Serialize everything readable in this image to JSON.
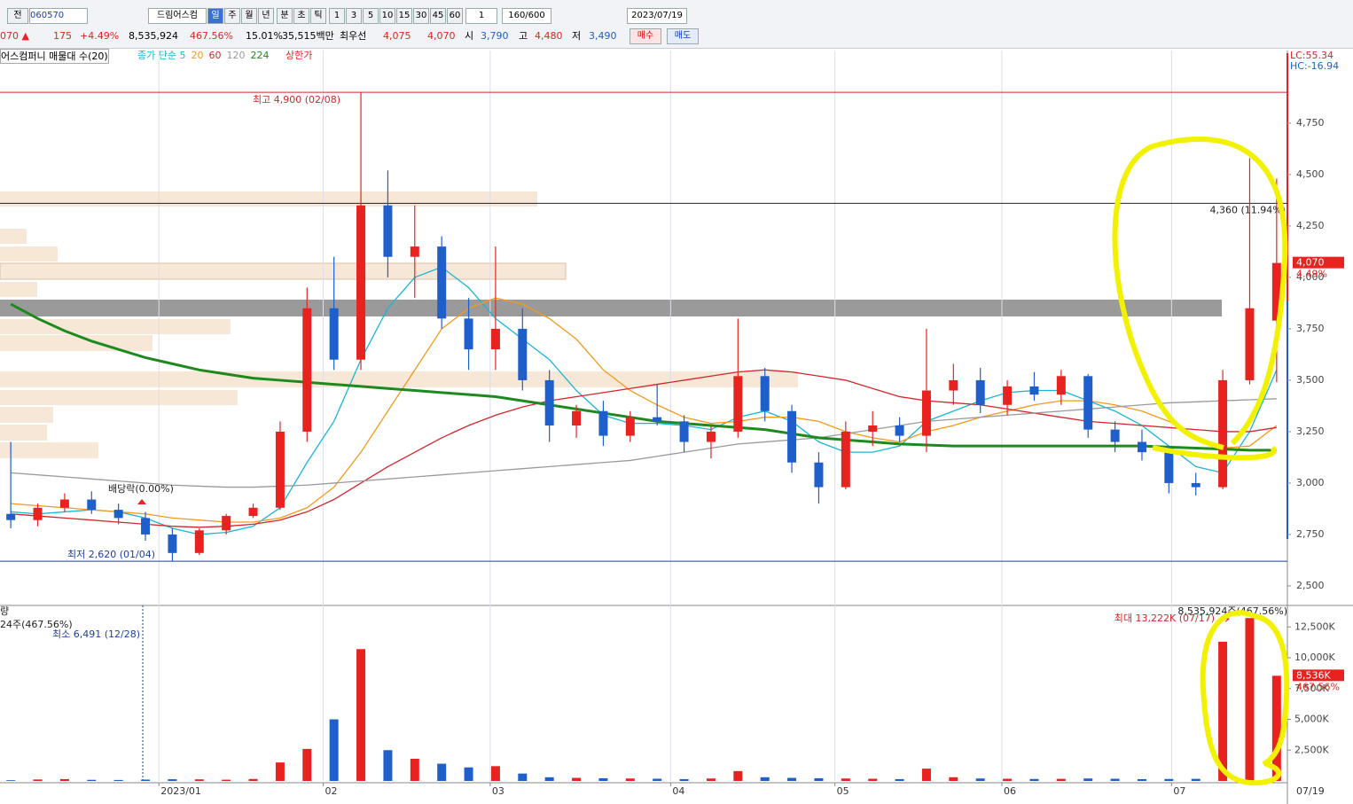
{
  "toolbar": {
    "row1": [
      "전",
      "060570",
      "드림어스컴",
      "일",
      "주",
      "월",
      "년",
      "분",
      "초",
      "틱",
      "1",
      "3",
      "5",
      "10",
      "15",
      "30",
      "45",
      "60",
      "1",
      "160/600",
      "2023/07/19"
    ],
    "row2": [
      "070 ▲",
      "175",
      "+4.49%",
      "8,535,924",
      "467.56%",
      "15.01%",
      "35,515백만",
      "최우선",
      "4,075",
      "4,070",
      "시",
      "3,790",
      "고",
      "4,480",
      "저",
      "3,490",
      "매수",
      "매도"
    ],
    "legend": [
      "어스컴퍼니 매물대 수(20)",
      "상한가"
    ]
  },
  "chart_data": {
    "type": "candlestick",
    "open": [
      2850,
      2820,
      2880,
      2920,
      2870,
      2830,
      2750,
      2660,
      2770,
      2840,
      2880,
      3250,
      3850,
      3600,
      4350,
      4100,
      4150,
      3800,
      3650,
      3750,
      3500,
      3280,
      3350,
      3230,
      3320,
      3300,
      3200,
      3250,
      3520,
      3350,
      3100,
      2980,
      3250,
      3280,
      3230,
      3450,
      3500,
      3380,
      3470,
      3430,
      3520,
      3260,
      3200,
      3150,
      3000,
      2980,
      3500,
      3790
    ],
    "high": [
      3200,
      2900,
      2950,
      2960,
      2900,
      2860,
      2780,
      2780,
      2850,
      2900,
      3300,
      3950,
      4100,
      4900,
      4520,
      4350,
      4200,
      3900,
      4150,
      3850,
      3550,
      3380,
      3400,
      3350,
      3480,
      3330,
      3280,
      3800,
      3560,
      3380,
      3150,
      3300,
      3350,
      3320,
      3750,
      3580,
      3560,
      3500,
      3540,
      3550,
      3530,
      3300,
      3260,
      3180,
      3050,
      3550,
      4580,
      4480
    ],
    "low": [
      2780,
      2790,
      2860,
      2850,
      2800,
      2720,
      2620,
      2650,
      2750,
      2830,
      2870,
      3200,
      3550,
      3550,
      4000,
      3900,
      3750,
      3550,
      3550,
      3450,
      3200,
      3220,
      3180,
      3200,
      3280,
      3150,
      3120,
      3220,
      3300,
      3050,
      2900,
      2970,
      3180,
      3200,
      3150,
      3380,
      3340,
      3330,
      3400,
      3380,
      3220,
      3150,
      3110,
      2950,
      2940,
      2970,
      3480,
      3490
    ],
    "close": [
      2820,
      2880,
      2920,
      2870,
      2830,
      2750,
      2660,
      2770,
      2840,
      2880,
      3250,
      3850,
      3600,
      4350,
      4100,
      4150,
      3800,
      3650,
      3750,
      3500,
      3280,
      3350,
      3230,
      3320,
      3300,
      3200,
      3250,
      3520,
      3350,
      3100,
      2980,
      3250,
      3280,
      3230,
      3450,
      3500,
      3380,
      3470,
      3430,
      3520,
      3260,
      3200,
      3150,
      3000,
      2980,
      3500,
      3850,
      4070
    ],
    "volume": [
      60,
      120,
      150,
      90,
      80,
      110,
      140,
      130,
      100,
      160,
      1500,
      2600,
      5000,
      10700,
      2500,
      1800,
      1400,
      1100,
      1200,
      600,
      300,
      250,
      220,
      200,
      180,
      150,
      200,
      800,
      300,
      250,
      220,
      200,
      180,
      150,
      1000,
      300,
      200,
      180,
      160,
      170,
      200,
      180,
      150,
      160,
      170,
      11300,
      13222,
      8536
    ],
    "ma": [
      {
        "name": "종가 단순 5",
        "color": "#19b5d6",
        "values": [
          2860,
          2850,
          2860,
          2870,
          2860,
          2830,
          2780,
          2750,
          2760,
          2790,
          2880,
          3100,
          3300,
          3600,
          3850,
          4000,
          4050,
          3950,
          3800,
          3700,
          3600,
          3450,
          3330,
          3290,
          3290,
          3280,
          3260,
          3320,
          3350,
          3300,
          3200,
          3150,
          3150,
          3180,
          3300,
          3350,
          3400,
          3440,
          3450,
          3450,
          3400,
          3350,
          3280,
          3180,
          3080,
          3050,
          3250,
          3550
        ]
      },
      {
        "name": "20",
        "color": "#f39a1c",
        "values": [
          2900,
          2890,
          2880,
          2870,
          2860,
          2850,
          2830,
          2820,
          2810,
          2810,
          2830,
          2880,
          2980,
          3150,
          3350,
          3550,
          3750,
          3850,
          3900,
          3870,
          3800,
          3700,
          3550,
          3450,
          3380,
          3320,
          3290,
          3300,
          3320,
          3320,
          3300,
          3250,
          3220,
          3200,
          3250,
          3280,
          3320,
          3350,
          3380,
          3400,
          3400,
          3380,
          3350,
          3300,
          3230,
          3170,
          3180,
          3280
        ]
      },
      {
        "name": "60",
        "color": "#d2262b",
        "values": [
          2850,
          2840,
          2830,
          2820,
          2810,
          2800,
          2790,
          2785,
          2790,
          2800,
          2820,
          2860,
          2920,
          3000,
          3080,
          3150,
          3220,
          3280,
          3330,
          3370,
          3400,
          3420,
          3440,
          3460,
          3480,
          3500,
          3520,
          3540,
          3550,
          3540,
          3520,
          3500,
          3460,
          3420,
          3400,
          3390,
          3380,
          3360,
          3340,
          3320,
          3300,
          3290,
          3280,
          3270,
          3260,
          3250,
          3250,
          3270
        ]
      },
      {
        "name": "120",
        "color": "#9a9a9a",
        "values": [
          3050,
          3040,
          3030,
          3020,
          3010,
          3000,
          2990,
          2985,
          2980,
          2980,
          2985,
          2990,
          3000,
          3010,
          3020,
          3030,
          3040,
          3050,
          3060,
          3070,
          3080,
          3090,
          3100,
          3110,
          3130,
          3150,
          3170,
          3190,
          3200,
          3210,
          3220,
          3240,
          3260,
          3280,
          3300,
          3310,
          3320,
          3330,
          3340,
          3350,
          3360,
          3370,
          3380,
          3390,
          3395,
          3400,
          3405,
          3410
        ]
      },
      {
        "name": "224",
        "color": "#1e8a1e",
        "values": [
          3870,
          3800,
          3740,
          3690,
          3650,
          3610,
          3580,
          3550,
          3530,
          3510,
          3500,
          3490,
          3480,
          3470,
          3460,
          3450,
          3440,
          3430,
          3420,
          3400,
          3380,
          3360,
          3340,
          3320,
          3300,
          3290,
          3280,
          3270,
          3260,
          3240,
          3220,
          3210,
          3200,
          3190,
          3185,
          3180,
          3180,
          3180,
          3180,
          3180,
          3180,
          3180,
          3180,
          3175,
          3170,
          3165,
          3160,
          3160
        ]
      }
    ],
    "up_color": "#e8231f",
    "down_color": "#1f5fcc",
    "ylim": [
      2405,
      5103
    ],
    "yticks": [
      {
        "value": 2500,
        "label": "2,500"
      },
      {
        "value": 2750,
        "label": "2,750"
      },
      {
        "value": 3000,
        "label": "3,000"
      },
      {
        "value": 3250,
        "label": "3,250"
      },
      {
        "value": 3500,
        "label": "3,500"
      },
      {
        "value": 3750,
        "label": "3,750"
      },
      {
        "value": 4000,
        "label": "4,000"
      },
      {
        "value": 4250,
        "label": "4,250"
      },
      {
        "value": 4500,
        "label": "4,500"
      },
      {
        "value": 4750,
        "label": "4,750"
      }
    ],
    "vol_ylim": [
      0,
      14245
    ],
    "vol_yticks": [
      {
        "value": 2500,
        "label": "2,500K"
      },
      {
        "value": 5000,
        "label": "5,000K"
      },
      {
        "value": 7500,
        "label": "7,500K"
      },
      {
        "value": 10000,
        "label": "10,000K"
      },
      {
        "value": 12500,
        "label": "12,500K"
      }
    ],
    "xlim": [
      -0.4,
      47.4
    ],
    "xticks": [
      {
        "value": 5.5,
        "label": "2023/01"
      },
      {
        "value": 11.6,
        "label": "02"
      },
      {
        "value": 17.8,
        "label": "03"
      },
      {
        "value": 24.5,
        "label": "04"
      },
      {
        "value": 30.6,
        "label": "05"
      },
      {
        "value": 36.8,
        "label": "06"
      },
      {
        "value": 43.1,
        "label": "07"
      }
    ],
    "grid": true,
    "high_line": {
      "value": 4900,
      "label": "최고 4,900 (02/08)"
    },
    "low_line": {
      "value": 2620,
      "label": "최저 2,620 (01/04)"
    },
    "ref_line": {
      "value": 4360,
      "label": "4,360 (11.94%)"
    },
    "current": {
      "value": 4070,
      "label": "4,070",
      "change": "4.49%"
    },
    "current_volume": {
      "value": 8536,
      "label": "8,536K",
      "change": "467.56%"
    },
    "max_volume": {
      "value": 13222,
      "label": "최대 13,222K (07/17)"
    },
    "volume_title": "량",
    "volume_info": "8,535,924주(467.56%)",
    "volume_info_left": "24주(467.56%)",
    "min_volume_label": "최소 6,491 (12/28)",
    "dividend_label": "배당락(0.00%)",
    "lc": "LC:55.34",
    "hc": "HC:-16.94",
    "last_date": "07/19"
  }
}
